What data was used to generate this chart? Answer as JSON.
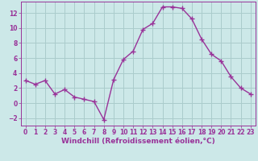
{
  "x": [
    0,
    1,
    2,
    3,
    4,
    5,
    6,
    7,
    8,
    9,
    10,
    11,
    12,
    13,
    14,
    15,
    16,
    17,
    18,
    19,
    20,
    21,
    22,
    23
  ],
  "y": [
    3.0,
    2.5,
    3.0,
    1.2,
    1.8,
    0.8,
    0.5,
    0.2,
    -2.2,
    3.1,
    5.8,
    6.9,
    9.8,
    10.6,
    12.8,
    12.8,
    12.6,
    11.2,
    8.5,
    6.5,
    5.6,
    3.5,
    2.0,
    1.2
  ],
  "line_color": "#993399",
  "marker": "+",
  "markersize": 4,
  "linewidth": 1.0,
  "background_color": "#cce8e8",
  "grid_color": "#aacccc",
  "xlabel": "Windchill (Refroidissement éolien,°C)",
  "xlabel_fontsize": 6.5,
  "xlabel_color": "#993399",
  "tick_color": "#993399",
  "tick_fontsize": 5.5,
  "ylim": [
    -3.0,
    13.5
  ],
  "xlim": [
    -0.5,
    23.5
  ],
  "yticks": [
    -2,
    0,
    2,
    4,
    6,
    8,
    10,
    12
  ],
  "xticks": [
    0,
    1,
    2,
    3,
    4,
    5,
    6,
    7,
    8,
    9,
    10,
    11,
    12,
    13,
    14,
    15,
    16,
    17,
    18,
    19,
    20,
    21,
    22,
    23
  ]
}
